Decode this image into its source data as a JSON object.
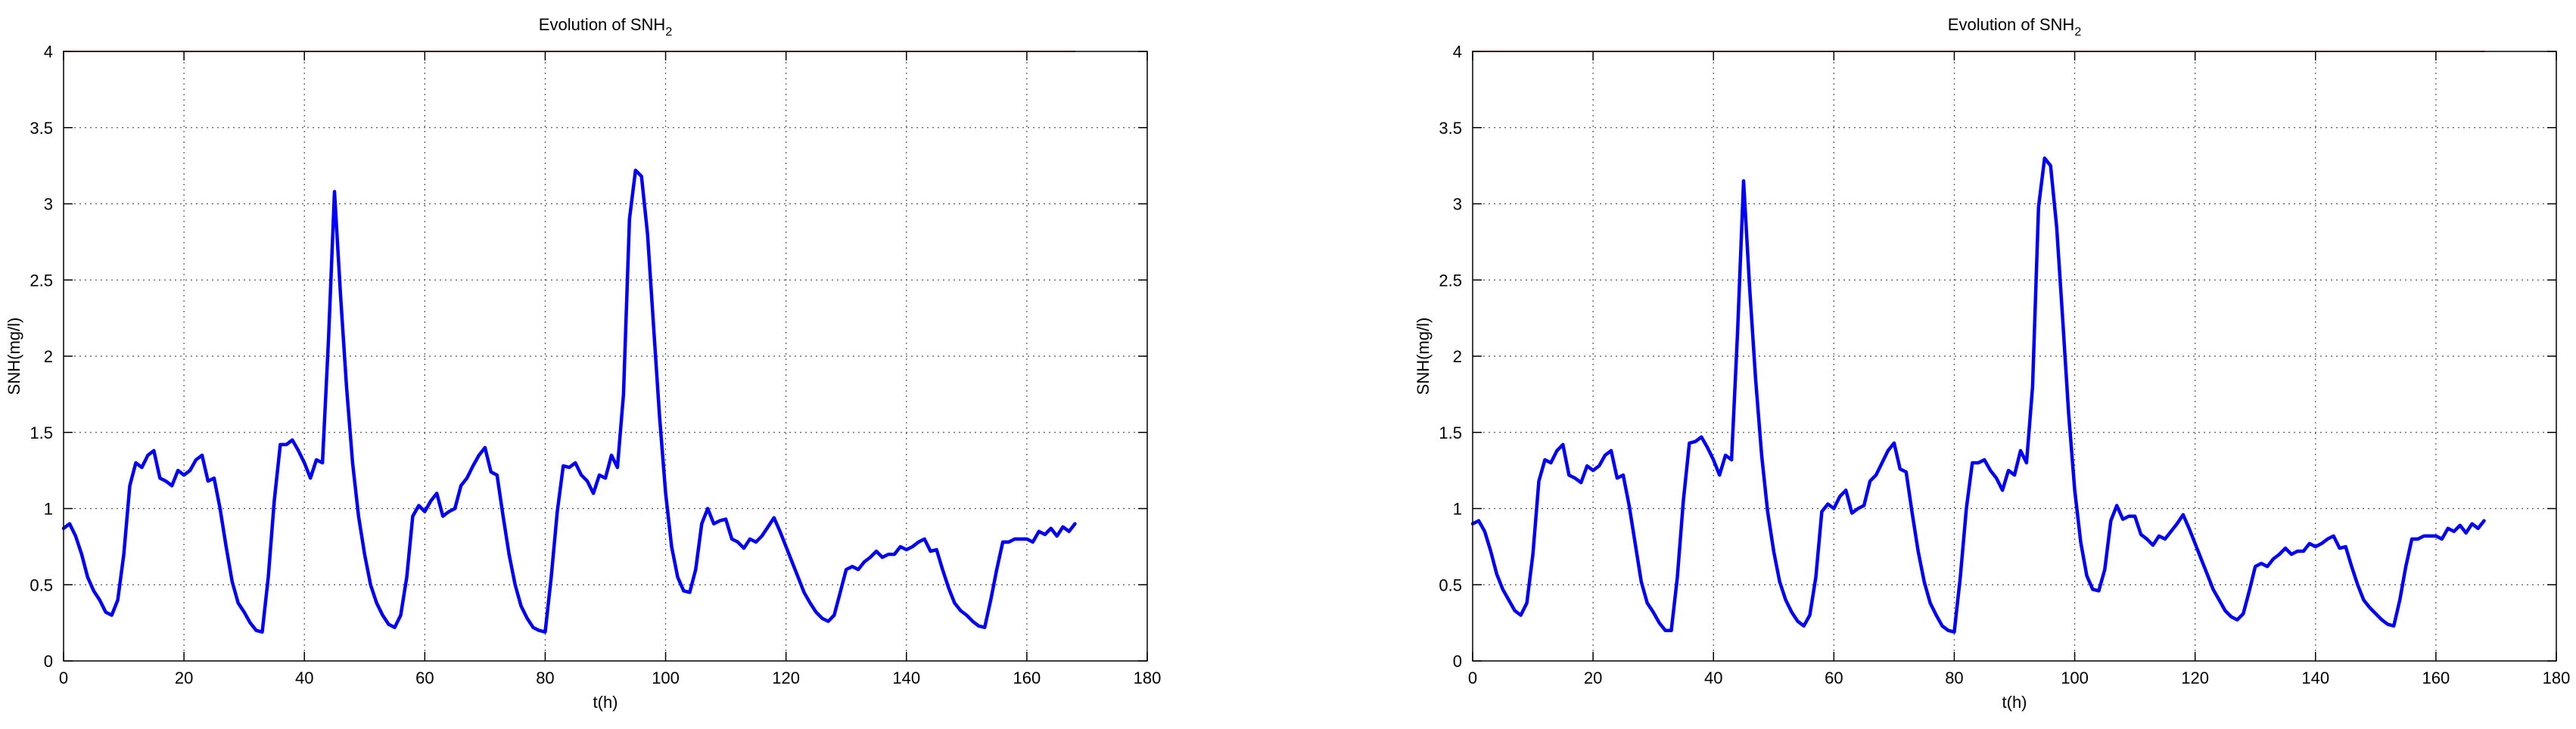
{
  "chart_data": [
    {
      "type": "line",
      "title": "Evolution of SNH",
      "title_subscript": "2",
      "xlabel": "t(h)",
      "ylabel": "SNH(mg/l)",
      "xlim": [
        0,
        180
      ],
      "ylim": [
        0,
        4
      ],
      "xticks": [
        "0",
        "20",
        "40",
        "60",
        "80",
        "100",
        "120",
        "140",
        "160",
        "180"
      ],
      "yticks": [
        "0",
        "0.5",
        "1",
        "1.5",
        "2",
        "2.5",
        "3",
        "3.5",
        "4"
      ],
      "grid": true,
      "series": [
        {
          "color": "#ff0000",
          "x": [
            0,
            168
          ],
          "y": [
            4,
            4
          ]
        },
        {
          "color": "#0000ff",
          "x": [
            0,
            1,
            2,
            3,
            4,
            5,
            6,
            7,
            8,
            9,
            10,
            11,
            12,
            13,
            14,
            15,
            16,
            17,
            18,
            19,
            20,
            21,
            22,
            23,
            24,
            25,
            26,
            27,
            28,
            29,
            30,
            31,
            32,
            33,
            34,
            35,
            36,
            37,
            38,
            39,
            40,
            41,
            42,
            43,
            44,
            45,
            46,
            47,
            48,
            49,
            50,
            51,
            52,
            53,
            54,
            55,
            56,
            57,
            58,
            59,
            60,
            61,
            62,
            63,
            64,
            65,
            66,
            67,
            68,
            69,
            70,
            71,
            72,
            73,
            74,
            75,
            76,
            77,
            78,
            79,
            80,
            81,
            82,
            83,
            84,
            85,
            86,
            87,
            88,
            89,
            90,
            91,
            92,
            93,
            94,
            95,
            96,
            97,
            98,
            99,
            100,
            101,
            102,
            103,
            104,
            105,
            106,
            107,
            108,
            109,
            110,
            111,
            112,
            113,
            114,
            115,
            116,
            117,
            118,
            119,
            120,
            121,
            122,
            123,
            124,
            125,
            126,
            127,
            128,
            129,
            130,
            131,
            132,
            133,
            134,
            135,
            136,
            137,
            138,
            139,
            140,
            141,
            142,
            143,
            144,
            145,
            146,
            147,
            148,
            149,
            150,
            151,
            152,
            153,
            154,
            155,
            156,
            157,
            158,
            159,
            160,
            161,
            162,
            163,
            164,
            165,
            166,
            167,
            168
          ],
          "y": [
            0.87,
            0.9,
            0.82,
            0.7,
            0.55,
            0.46,
            0.4,
            0.32,
            0.3,
            0.4,
            0.7,
            1.15,
            1.3,
            1.27,
            1.35,
            1.38,
            1.2,
            1.18,
            1.15,
            1.25,
            1.22,
            1.25,
            1.32,
            1.35,
            1.18,
            1.2,
            1.0,
            0.75,
            0.52,
            0.38,
            0.32,
            0.25,
            0.2,
            0.19,
            0.55,
            1.05,
            1.42,
            1.42,
            1.45,
            1.38,
            1.3,
            1.2,
            1.32,
            1.3,
            2.1,
            3.08,
            2.4,
            1.8,
            1.3,
            0.95,
            0.7,
            0.5,
            0.38,
            0.3,
            0.24,
            0.22,
            0.3,
            0.55,
            0.95,
            1.02,
            0.98,
            1.05,
            1.1,
            0.95,
            0.98,
            1.0,
            1.15,
            1.2,
            1.28,
            1.35,
            1.4,
            1.24,
            1.22,
            0.95,
            0.7,
            0.5,
            0.36,
            0.28,
            0.22,
            0.2,
            0.19,
            0.55,
            0.98,
            1.28,
            1.27,
            1.3,
            1.22,
            1.18,
            1.1,
            1.22,
            1.2,
            1.35,
            1.27,
            1.75,
            2.9,
            3.22,
            3.18,
            2.8,
            2.2,
            1.6,
            1.1,
            0.75,
            0.55,
            0.46,
            0.45,
            0.6,
            0.9,
            1.0,
            0.9,
            0.92,
            0.93,
            0.8,
            0.78,
            0.74,
            0.8,
            0.78,
            0.82,
            0.88,
            0.94,
            0.85,
            0.75,
            0.65,
            0.55,
            0.45,
            0.38,
            0.32,
            0.28,
            0.26,
            0.3,
            0.45,
            0.6,
            0.62,
            0.6,
            0.65,
            0.68,
            0.72,
            0.68,
            0.7,
            0.7,
            0.75,
            0.73,
            0.75,
            0.78,
            0.8,
            0.72,
            0.73,
            0.6,
            0.48,
            0.38,
            0.33,
            0.3,
            0.26,
            0.23,
            0.22,
            0.4,
            0.6,
            0.78,
            0.78,
            0.8,
            0.8,
            0.8,
            0.78,
            0.85,
            0.83,
            0.87,
            0.82,
            0.88,
            0.85,
            0.9
          ]
        }
      ]
    },
    {
      "type": "line",
      "title": "Evolution of SNH",
      "title_subscript": "2",
      "xlabel": "t(h)",
      "ylabel": "SNH(mg/l)",
      "xlim": [
        0,
        180
      ],
      "ylim": [
        0,
        4
      ],
      "xticks": [
        "0",
        "20",
        "40",
        "60",
        "80",
        "100",
        "120",
        "140",
        "160",
        "180"
      ],
      "yticks": [
        "0",
        "0.5",
        "1",
        "1.5",
        "2",
        "2.5",
        "3",
        "3.5",
        "4"
      ],
      "grid": true,
      "series": [
        {
          "color": "#ff0000",
          "x": [
            0,
            168
          ],
          "y": [
            4,
            4
          ]
        },
        {
          "color": "#0000ff",
          "x": [
            0,
            1,
            2,
            3,
            4,
            5,
            6,
            7,
            8,
            9,
            10,
            11,
            12,
            13,
            14,
            15,
            16,
            17,
            18,
            19,
            20,
            21,
            22,
            23,
            24,
            25,
            26,
            27,
            28,
            29,
            30,
            31,
            32,
            33,
            34,
            35,
            36,
            37,
            38,
            39,
            40,
            41,
            42,
            43,
            44,
            45,
            46,
            47,
            48,
            49,
            50,
            51,
            52,
            53,
            54,
            55,
            56,
            57,
            58,
            59,
            60,
            61,
            62,
            63,
            64,
            65,
            66,
            67,
            68,
            69,
            70,
            71,
            72,
            73,
            74,
            75,
            76,
            77,
            78,
            79,
            80,
            81,
            82,
            83,
            84,
            85,
            86,
            87,
            88,
            89,
            90,
            91,
            92,
            93,
            94,
            95,
            96,
            97,
            98,
            99,
            100,
            101,
            102,
            103,
            104,
            105,
            106,
            107,
            108,
            109,
            110,
            111,
            112,
            113,
            114,
            115,
            116,
            117,
            118,
            119,
            120,
            121,
            122,
            123,
            124,
            125,
            126,
            127,
            128,
            129,
            130,
            131,
            132,
            133,
            134,
            135,
            136,
            137,
            138,
            139,
            140,
            141,
            142,
            143,
            144,
            145,
            146,
            147,
            148,
            149,
            150,
            151,
            152,
            153,
            154,
            155,
            156,
            157,
            158,
            159,
            160,
            161,
            162,
            163,
            164,
            165,
            166,
            167,
            168
          ],
          "y": [
            0.9,
            0.92,
            0.85,
            0.72,
            0.57,
            0.47,
            0.4,
            0.33,
            0.3,
            0.38,
            0.7,
            1.18,
            1.32,
            1.3,
            1.38,
            1.42,
            1.22,
            1.2,
            1.17,
            1.28,
            1.25,
            1.28,
            1.35,
            1.38,
            1.2,
            1.22,
            1.02,
            0.77,
            0.52,
            0.38,
            0.32,
            0.25,
            0.2,
            0.2,
            0.55,
            1.05,
            1.43,
            1.44,
            1.47,
            1.4,
            1.32,
            1.22,
            1.35,
            1.32,
            2.15,
            3.15,
            2.45,
            1.85,
            1.35,
            0.98,
            0.72,
            0.52,
            0.4,
            0.32,
            0.26,
            0.23,
            0.3,
            0.55,
            0.98,
            1.03,
            1.0,
            1.08,
            1.12,
            0.97,
            1.0,
            1.02,
            1.18,
            1.22,
            1.3,
            1.38,
            1.43,
            1.26,
            1.24,
            0.97,
            0.72,
            0.52,
            0.38,
            0.3,
            0.23,
            0.2,
            0.19,
            0.55,
            1.0,
            1.3,
            1.3,
            1.32,
            1.25,
            1.2,
            1.12,
            1.25,
            1.22,
            1.38,
            1.3,
            1.8,
            2.98,
            3.3,
            3.25,
            2.85,
            2.25,
            1.62,
            1.12,
            0.78,
            0.56,
            0.47,
            0.46,
            0.6,
            0.92,
            1.02,
            0.93,
            0.95,
            0.95,
            0.83,
            0.8,
            0.76,
            0.82,
            0.8,
            0.85,
            0.9,
            0.96,
            0.87,
            0.77,
            0.67,
            0.57,
            0.47,
            0.4,
            0.33,
            0.29,
            0.27,
            0.31,
            0.46,
            0.62,
            0.64,
            0.62,
            0.67,
            0.7,
            0.74,
            0.7,
            0.72,
            0.72,
            0.77,
            0.75,
            0.77,
            0.8,
            0.82,
            0.74,
            0.75,
            0.62,
            0.5,
            0.4,
            0.35,
            0.31,
            0.27,
            0.24,
            0.23,
            0.4,
            0.62,
            0.8,
            0.8,
            0.82,
            0.82,
            0.82,
            0.8,
            0.87,
            0.85,
            0.89,
            0.84,
            0.9,
            0.87,
            0.92
          ]
        }
      ]
    }
  ]
}
